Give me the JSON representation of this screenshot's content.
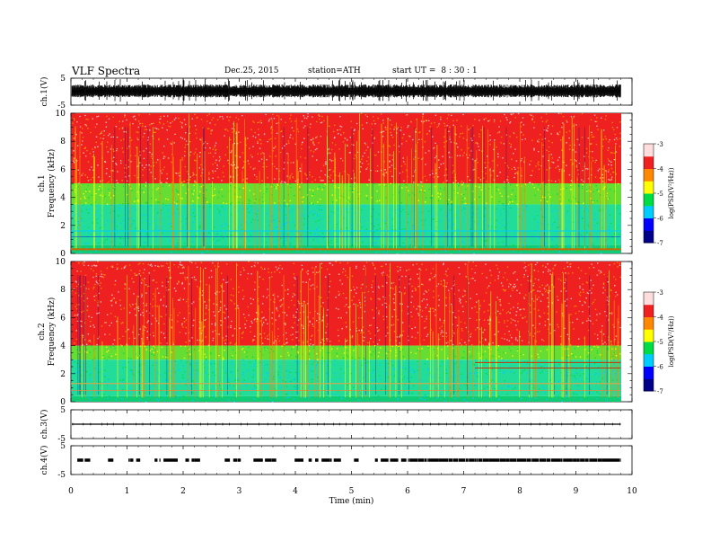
{
  "header": {
    "title": "VLF  Spectra",
    "date": "Dec.25, 2015",
    "station": "station=ATH",
    "start_label": "start  UT  =",
    "start_value": "8 : 30 : 1"
  },
  "chart_data": [
    {
      "type": "line",
      "panel": "ch1-waveform",
      "ylabel": "ch.1(V)",
      "ylim": [
        -5,
        5
      ],
      "yticks": [
        "5",
        "-5"
      ],
      "mean_level": 0,
      "x_range": [
        0,
        9.8
      ]
    },
    {
      "type": "heatmap",
      "panel": "ch1-spectrogram",
      "ylabel_top": "ch.1",
      "ylabel": "Frequency  (kHz)",
      "ylim": [
        0,
        10
      ],
      "yticks": [
        "0",
        "2",
        "4",
        "6",
        "8",
        "10"
      ],
      "x_range": [
        0,
        9.8
      ],
      "colorbar": {
        "label": "log(PSD(V²/Hz))",
        "range": [
          -7,
          -3
        ],
        "ticks": [
          "-3",
          "-4",
          "-5",
          "-6",
          "-7"
        ]
      },
      "bands_khz": {
        "red_above": 5.0,
        "yellow_green_between": [
          3.5,
          5.0
        ],
        "cyan_between": [
          0.6,
          3.5
        ],
        "hum_line": 0.3
      }
    },
    {
      "type": "heatmap",
      "panel": "ch2-spectrogram",
      "ylabel_top": "ch.2",
      "ylabel": "Frequency  (kHz)",
      "ylim": [
        0,
        10
      ],
      "yticks": [
        "0",
        "2",
        "4",
        "6",
        "8",
        "10"
      ],
      "x_range": [
        0,
        9.8
      ],
      "colorbar": {
        "label": "log(PSD(V²/Hz))",
        "range": [
          -7,
          -3
        ],
        "ticks": [
          "-3",
          "-4",
          "-5",
          "-6",
          "-7"
        ]
      },
      "bands_khz": {
        "red_above": 4.0,
        "yellow_green_between": [
          3.0,
          4.0
        ],
        "cyan_between": [
          0.4,
          3.0
        ],
        "lines": [
          1.3,
          2.4,
          2.8
        ]
      }
    },
    {
      "type": "line",
      "panel": "ch3-waveform",
      "ylabel": "ch.3(V)",
      "ylim": [
        -5,
        5
      ],
      "yticks": [
        "5",
        "-5"
      ],
      "mean_level": 0,
      "x_range": [
        0,
        9.8
      ]
    },
    {
      "type": "line",
      "panel": "ch4-waveform",
      "ylabel": "ch.4(V)",
      "ylim": [
        -5,
        5
      ],
      "yticks": [
        "5",
        "-5"
      ],
      "mean_level": 0,
      "x_range": [
        0,
        9.8
      ]
    }
  ],
  "xaxis": {
    "label": "Time  (min)",
    "range": [
      0,
      10
    ],
    "ticks": [
      "0",
      "1",
      "2",
      "3",
      "4",
      "5",
      "6",
      "7",
      "8",
      "9",
      "10"
    ]
  },
  "colors": {
    "red": "#ee2020",
    "orange": "#ff8800",
    "yellow": "#ffff00",
    "green": "#00dd44",
    "cyan": "#00ccff",
    "blue": "#0000ff",
    "navy": "#000088"
  }
}
